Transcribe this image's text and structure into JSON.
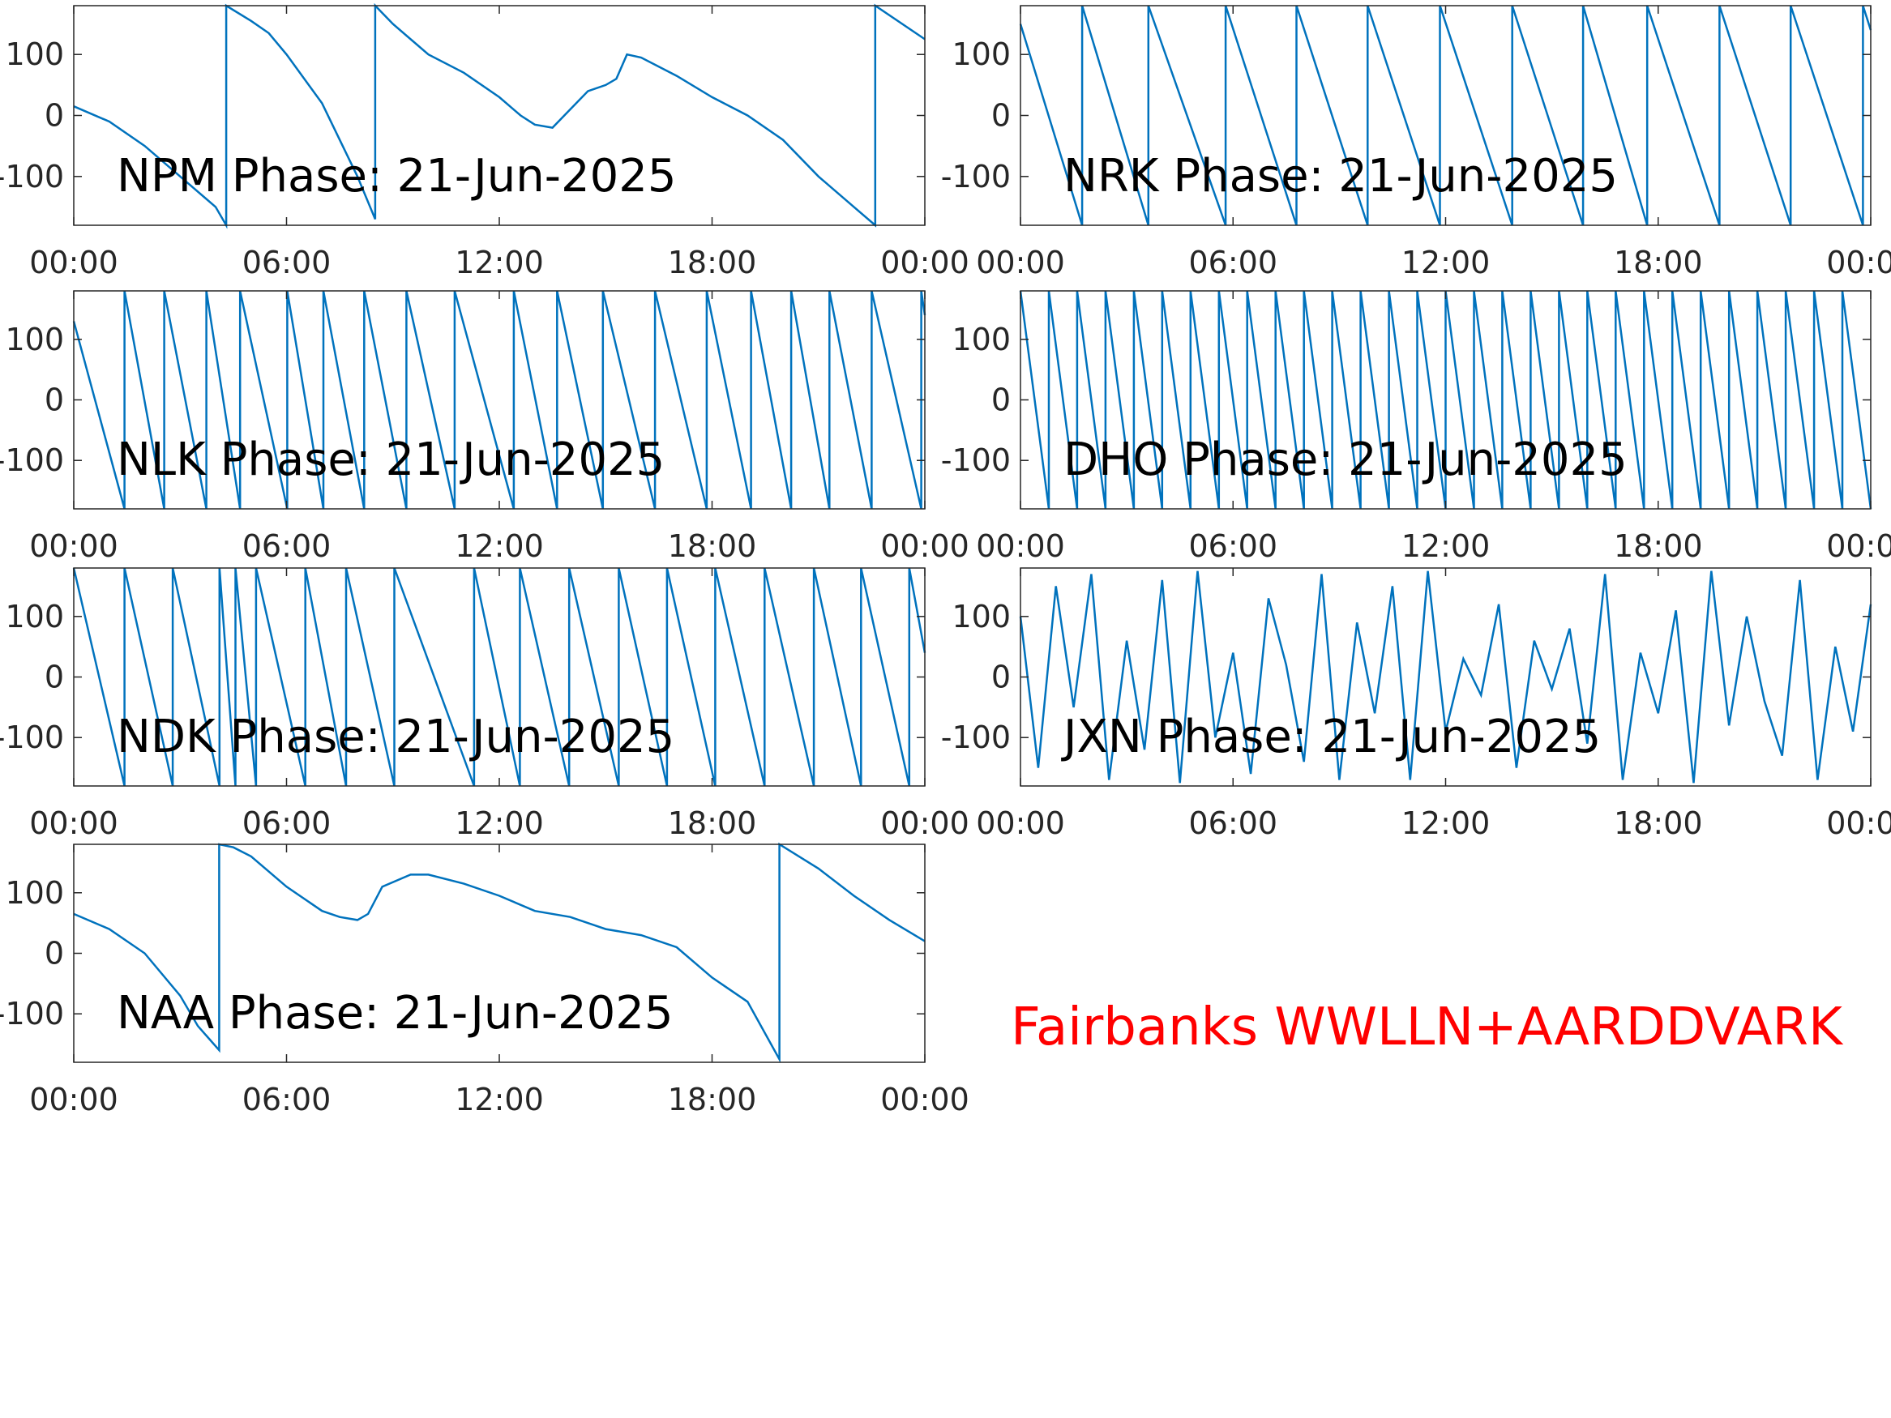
{
  "chart_data": [
    {
      "type": "line",
      "title": "NPM Phase: 21-Jun-2025",
      "color": "#0072bd",
      "xlim": [
        0,
        24
      ],
      "ylim": [
        -180,
        180
      ],
      "xticks": [
        {
          "value": 0,
          "label": "00:00"
        },
        {
          "value": 6,
          "label": "06:00"
        },
        {
          "value": 12,
          "label": "12:00"
        },
        {
          "value": 18,
          "label": "18:00"
        },
        {
          "value": 24,
          "label": "00:00"
        }
      ],
      "yticks": [
        -100,
        0,
        100
      ],
      "x": [
        0,
        1,
        2,
        3,
        4,
        4.3,
        4.3,
        5,
        5.5,
        6,
        7,
        8,
        8.5,
        8.5,
        9,
        10,
        11,
        12,
        12.6,
        13,
        13.5,
        14,
        14.5,
        15,
        15.3,
        15.6,
        16,
        17,
        18,
        19,
        20,
        21,
        22,
        22.6,
        22.6,
        24
      ],
      "values": [
        15,
        -10,
        -50,
        -100,
        -150,
        -180,
        180,
        155,
        135,
        100,
        20,
        -100,
        -170,
        180,
        150,
        100,
        70,
        30,
        0,
        -15,
        -20,
        10,
        40,
        50,
        60,
        100,
        95,
        65,
        30,
        0,
        -40,
        -100,
        -150,
        -180,
        180,
        125
      ]
    },
    {
      "type": "line",
      "title": "NRK Phase: 21-Jun-2025",
      "color": "#0072bd",
      "xlim": [
        0,
        24
      ],
      "ylim": [
        -180,
        180
      ],
      "xticks": [
        {
          "value": 0,
          "label": "00:00"
        },
        {
          "value": 6,
          "label": "06:00"
        },
        {
          "value": 12,
          "label": "12:00"
        },
        {
          "value": 18,
          "label": "18:00"
        },
        {
          "value": 24,
          "label": "00:00"
        }
      ],
      "yticks": [
        -100,
        0,
        100
      ],
      "x": [
        0,
        1.74,
        1.74,
        3.61,
        3.61,
        5.79,
        5.79,
        7.79,
        7.79,
        9.8,
        9.8,
        11.84,
        11.84,
        13.88,
        13.88,
        15.88,
        15.88,
        17.69,
        17.69,
        19.73,
        19.73,
        21.74,
        21.74,
        23.78,
        23.78,
        24
      ],
      "values": [
        150,
        -180,
        180,
        -180,
        180,
        -180,
        180,
        -180,
        180,
        -180,
        180,
        -180,
        180,
        -180,
        180,
        -180,
        180,
        -180,
        180,
        -180,
        180,
        -180,
        180,
        -180,
        180,
        140
      ]
    },
    {
      "type": "line",
      "title": "NLK Phase: 21-Jun-2025",
      "color": "#0072bd",
      "xlim": [
        0,
        24
      ],
      "ylim": [
        -180,
        180
      ],
      "xticks": [
        {
          "value": 0,
          "label": "00:00"
        },
        {
          "value": 6,
          "label": "06:00"
        },
        {
          "value": 12,
          "label": "12:00"
        },
        {
          "value": 18,
          "label": "18:00"
        },
        {
          "value": 24,
          "label": "00:00"
        }
      ],
      "yticks": [
        -100,
        0,
        100
      ],
      "x": [
        0,
        1.43,
        1.43,
        2.55,
        2.55,
        3.74,
        3.74,
        4.69,
        4.69,
        6.02,
        6.02,
        7.04,
        7.04,
        8.19,
        8.19,
        9.38,
        9.38,
        10.74,
        10.74,
        12.41,
        12.41,
        13.63,
        13.63,
        14.92,
        14.92,
        16.39,
        16.39,
        17.85,
        17.85,
        19.1,
        19.1,
        20.23,
        20.23,
        21.31,
        21.31,
        22.5,
        22.5,
        23.9,
        23.9,
        24
      ],
      "values": [
        130,
        -180,
        180,
        -180,
        180,
        -180,
        180,
        -180,
        180,
        -180,
        180,
        -180,
        180,
        -180,
        180,
        -180,
        180,
        -180,
        180,
        -180,
        180,
        -180,
        180,
        -180,
        180,
        -180,
        180,
        -180,
        180,
        -180,
        180,
        -180,
        180,
        -180,
        180,
        -180,
        180,
        -180,
        180,
        140
      ]
    },
    {
      "type": "line",
      "title": "DHO Phase: 21-Jun-2025",
      "color": "#0072bd",
      "xlim": [
        0,
        24
      ],
      "ylim": [
        -180,
        180
      ],
      "xticks": [
        {
          "value": 0,
          "label": "00:00"
        },
        {
          "value": 6,
          "label": "06:00"
        },
        {
          "value": 12,
          "label": "12:00"
        },
        {
          "value": 18,
          "label": "18:00"
        },
        {
          "value": 24,
          "label": "00:00"
        }
      ],
      "yticks": [
        -100,
        0,
        100
      ],
      "x": [
        0,
        0.8,
        0.8,
        1.6,
        1.6,
        2.4,
        2.4,
        3.2,
        3.2,
        4,
        4,
        4.8,
        4.8,
        5.6,
        5.6,
        6.4,
        6.4,
        7.2,
        7.2,
        8,
        8,
        8.8,
        8.8,
        9.6,
        9.6,
        10.4,
        10.4,
        11.2,
        11.2,
        12,
        12,
        12.8,
        12.8,
        13.6,
        13.6,
        14.4,
        14.4,
        15.2,
        15.2,
        16,
        16,
        16.8,
        16.8,
        17.6,
        17.6,
        18.4,
        18.4,
        19.2,
        19.2,
        20,
        20,
        20.8,
        20.8,
        21.6,
        21.6,
        22.4,
        22.4,
        23.2,
        23.2,
        24
      ],
      "values": [
        180,
        -180,
        180,
        -180,
        180,
        -180,
        180,
        -180,
        180,
        -180,
        180,
        -180,
        180,
        -180,
        180,
        -180,
        180,
        -180,
        180,
        -180,
        180,
        -180,
        180,
        -180,
        180,
        -180,
        180,
        -180,
        180,
        -180,
        180,
        -180,
        180,
        -180,
        180,
        -180,
        180,
        -180,
        180,
        -180,
        180,
        -180,
        180,
        -180,
        180,
        -180,
        180,
        -180,
        180,
        -180,
        180,
        -180,
        180,
        -180,
        180,
        -180,
        180,
        -180,
        180,
        -180
      ]
    },
    {
      "type": "line",
      "title": "NDK Phase: 21-Jun-2025",
      "color": "#0072bd",
      "xlim": [
        0,
        24
      ],
      "ylim": [
        -180,
        180
      ],
      "xticks": [
        {
          "value": 0,
          "label": "00:00"
        },
        {
          "value": 6,
          "label": "06:00"
        },
        {
          "value": 12,
          "label": "12:00"
        },
        {
          "value": 18,
          "label": "18:00"
        },
        {
          "value": 24,
          "label": "00:00"
        }
      ],
      "yticks": [
        -100,
        0,
        100
      ],
      "x": [
        0,
        1.43,
        1.43,
        2.79,
        2.79,
        4.11,
        4.11,
        4.56,
        4.56,
        5.14,
        5.14,
        6.53,
        6.53,
        7.68,
        7.68,
        9.04,
        9.04,
        11.29,
        11.29,
        12.58,
        12.58,
        13.97,
        13.97,
        15.37,
        15.37,
        16.73,
        16.73,
        18.09,
        18.09,
        19.48,
        19.48,
        20.87,
        20.87,
        22.2,
        22.2,
        23.56,
        23.56,
        24
      ],
      "values": [
        180,
        -180,
        180,
        -180,
        180,
        -180,
        180,
        -180,
        180,
        -180,
        180,
        -180,
        180,
        -180,
        180,
        -180,
        180,
        -180,
        180,
        -180,
        180,
        -180,
        180,
        -180,
        180,
        -180,
        180,
        -180,
        180,
        -180,
        180,
        -180,
        180,
        -180,
        180,
        -180,
        180,
        40
      ]
    },
    {
      "type": "line",
      "title": "JXN Phase: 21-Jun-2025",
      "color": "#0072bd",
      "xlim": [
        0,
        24
      ],
      "ylim": [
        -180,
        180
      ],
      "xticks": [
        {
          "value": 0,
          "label": "00:00"
        },
        {
          "value": 6,
          "label": "06:00"
        },
        {
          "value": 12,
          "label": "12:00"
        },
        {
          "value": 18,
          "label": "18:00"
        },
        {
          "value": 24,
          "label": "00:00"
        }
      ],
      "yticks": [
        -100,
        0,
        100
      ],
      "x": [
        0,
        0.5,
        1,
        1.5,
        2,
        2.5,
        3,
        3.5,
        4,
        4.5,
        5,
        5.5,
        6,
        6.5,
        7,
        7.5,
        8,
        8.5,
        9,
        9.5,
        10,
        10.5,
        11,
        11.5,
        12,
        12.5,
        13,
        13.5,
        14,
        14.5,
        15,
        15.5,
        16,
        16.5,
        17,
        17.5,
        18,
        18.5,
        19,
        19.5,
        20,
        20.5,
        21,
        21.5,
        22,
        22.5,
        23,
        23.5,
        24
      ],
      "values": [
        100,
        -150,
        150,
        -50,
        170,
        -170,
        60,
        -120,
        160,
        -175,
        175,
        -100,
        40,
        -160,
        130,
        20,
        -140,
        170,
        -170,
        90,
        -60,
        150,
        -170,
        175,
        -90,
        30,
        -30,
        120,
        -150,
        60,
        -20,
        80,
        -110,
        170,
        -170,
        40,
        -60,
        110,
        -175,
        175,
        -80,
        100,
        -40,
        -130,
        160,
        -170,
        50,
        -90,
        120
      ]
    },
    {
      "type": "line",
      "title": "NAA Phase: 21-Jun-2025",
      "color": "#0072bd",
      "xlim": [
        0,
        24
      ],
      "ylim": [
        -180,
        180
      ],
      "xticks": [
        {
          "value": 0,
          "label": "00:00"
        },
        {
          "value": 6,
          "label": "06:00"
        },
        {
          "value": 12,
          "label": "12:00"
        },
        {
          "value": 18,
          "label": "18:00"
        },
        {
          "value": 24,
          "label": "00:00"
        }
      ],
      "yticks": [
        -100,
        0,
        100
      ],
      "x": [
        0,
        1,
        2,
        3,
        3.5,
        4.1,
        4.1,
        4.5,
        5,
        6,
        7,
        7.5,
        8,
        8.3,
        8.7,
        9.5,
        10,
        11,
        12,
        13,
        14,
        15,
        16,
        17,
        18,
        19,
        19.9,
        19.9,
        21,
        22,
        23,
        24
      ],
      "values": [
        65,
        40,
        0,
        -70,
        -120,
        -160,
        180,
        175,
        160,
        110,
        70,
        60,
        55,
        65,
        110,
        130,
        130,
        115,
        95,
        70,
        60,
        40,
        30,
        10,
        -40,
        -80,
        -175,
        180,
        140,
        95,
        55,
        20
      ]
    }
  ],
  "annotation": {
    "text": "Fairbanks WWLLN+AARDDVARK",
    "color": "#ff0000"
  }
}
